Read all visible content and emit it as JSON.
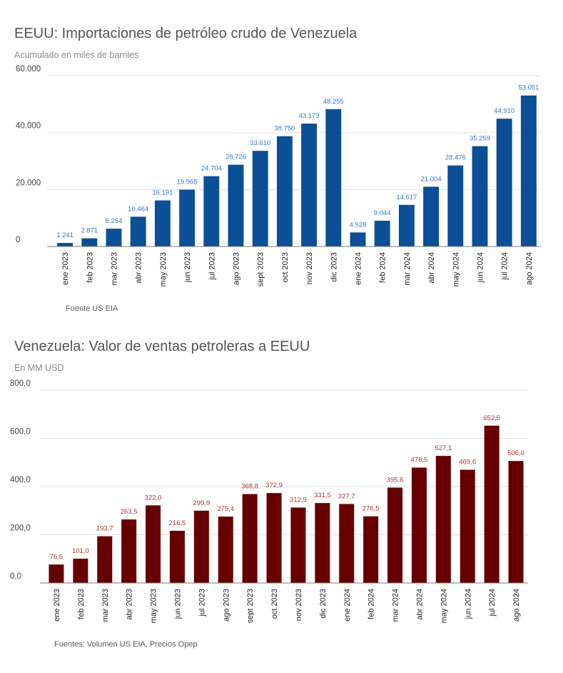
{
  "chart_data": [
    {
      "type": "bar",
      "title": "EEUU: Importaciones de petróleo crudo de Venezuela",
      "subtitle": "Acumulado en miles de barriles",
      "source": "Fuente US EIA",
      "categories": [
        "ene 2023",
        "feb 2023",
        "mar 2023",
        "abr 2023",
        "may 2023",
        "jun 2023",
        "jul 2023",
        "ago 2023",
        "sept 2023",
        "oct 2023",
        "nov 2023",
        "dic 2023",
        "ene 2024",
        "feb 2024",
        "mar 2024",
        "abr 2024",
        "may 2024",
        "jun 2024",
        "jul 2024",
        "ago 2024"
      ],
      "values": [
        1241,
        2871,
        6254,
        10464,
        16191,
        19965,
        24704,
        28726,
        33610,
        38750,
        43173,
        48255,
        4928,
        9044,
        14617,
        21004,
        28476,
        35259,
        44910,
        53051
      ],
      "value_labels": [
        "1.241",
        "2.871",
        "6.254",
        "10.464",
        "16.191",
        "19.965",
        "24.704",
        "28.726",
        "33.610",
        "38.750",
        "43.173",
        "48.255",
        "4.928",
        "9.044",
        "14.617",
        "21.004",
        "28.476",
        "35.259",
        "44.910",
        "53.051"
      ],
      "yticks": [
        0,
        20000,
        40000,
        60000
      ],
      "ytick_labels": [
        "0",
        "20.000",
        "40.000",
        "60.000"
      ],
      "ylim": [
        0,
        60000
      ],
      "grid": true,
      "bar_color": "#0b4f96",
      "label_color": "#3a78c4",
      "xlabel": "",
      "ylabel": ""
    },
    {
      "type": "bar",
      "title": "Venezuela: Valor de ventas petroleras a EEUU",
      "subtitle": "En MM USD",
      "source": "Fuentes: Volumen US EIA, Precios Opep",
      "categories": [
        "ene 2023",
        "feb 2023",
        "mar 2023",
        "abr 2023",
        "may 2023",
        "jun 2023",
        "jul 2023",
        "ago 2023",
        "sept 2023",
        "oct 2023",
        "nov 2023",
        "dic 2023",
        "ene 2024",
        "feb 2024",
        "mar 2024",
        "abr 2024",
        "may 2024",
        "jun 2024",
        "jul 2024",
        "ago 2024"
      ],
      "values": [
        76.6,
        101.0,
        193.7,
        263.5,
        322.0,
        216.5,
        299.9,
        275.4,
        368.8,
        372.9,
        312.9,
        331.5,
        327.7,
        276.5,
        395.6,
        478.5,
        527.1,
        469.6,
        652.5,
        506.0
      ],
      "value_labels": [
        "76,6",
        "101,0",
        "193,7",
        "263,5",
        "322,0",
        "216,5",
        "299,9",
        "275,4",
        "368,8",
        "372,9",
        "312,9",
        "331,5",
        "327,7",
        "276,5",
        "395,6",
        "478,5",
        "527,1",
        "469,6",
        "652,5",
        "506,0"
      ],
      "yticks": [
        0,
        200,
        400,
        600,
        800
      ],
      "ytick_labels": [
        "0,0",
        "200,0",
        "400,0",
        "600,0",
        "800,0"
      ],
      "ylim": [
        0,
        800
      ],
      "grid": true,
      "bar_color": "#660000",
      "label_color": "#a03a3a",
      "xlabel": "",
      "ylabel": ""
    }
  ]
}
